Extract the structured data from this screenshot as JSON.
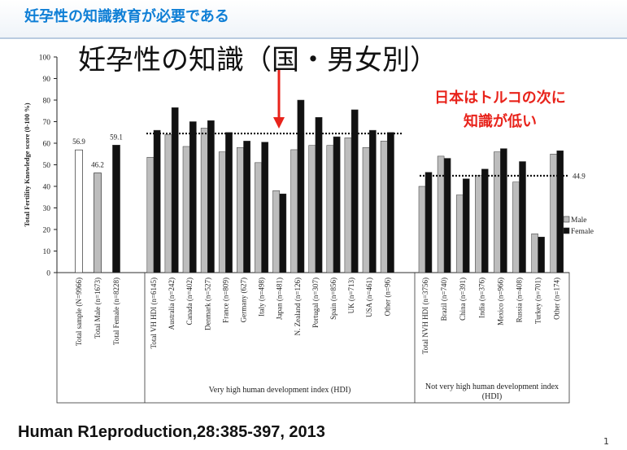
{
  "slide": {
    "top_heading": "妊孕性の知識教育が必要である",
    "title": "妊孕性の知識（国・男女別）",
    "annotation_line1": "日本はトルコの次に",
    "annotation_line2": "知識が低い",
    "citation": "Human R1eproduction,28:385-397, 2013",
    "page_number": "1"
  },
  "colors": {
    "male_bar": "#bdbdbd",
    "female_bar": "#111111",
    "total_sample_bar": "#ffffff",
    "heading_blue": "#0f7fd6",
    "annotation_red": "#e8231b",
    "arrow_red": "#e8231b"
  },
  "chart_data": {
    "type": "bar",
    "ylabel": "Total Fertility Knowledge score (0-100 %)",
    "ylim": [
      0,
      100
    ],
    "yticks": [
      0,
      10,
      20,
      30,
      40,
      50,
      60,
      70,
      80,
      90,
      100
    ],
    "grid": false,
    "legend": {
      "position": "right",
      "entries": [
        "Male",
        "Female"
      ]
    },
    "totals": {
      "categories": [
        "Total sample (N=9966)",
        "Total Male (n=1673)",
        "Total Female (n=8228)"
      ],
      "values": [
        56.9,
        46.2,
        59.1
      ],
      "labels": [
        "56.9",
        "46.2",
        "59.1"
      ]
    },
    "groups": [
      {
        "label": "Very high human development index (HDI)",
        "reference_line": 64.5,
        "categories": [
          "Total VH HDI (n=6145)",
          "Australia (n=242)",
          "Canada (n=402)",
          "Denmark (n=527)",
          "France (n=809)",
          "Germany (627)",
          "Italy (n=498)",
          "Japan (n=481)",
          "N. Zealand (n=126)",
          "Portugal (n=307)",
          "Spain (n=856)",
          "UK (n=713)",
          "USA (n=461)",
          "Other (n=96)"
        ],
        "series": [
          {
            "name": "Male",
            "values": [
              53.5,
              64,
              58.5,
              67,
              56,
              58,
              51,
              38,
              57,
              59,
              59,
              62.5,
              58,
              61
            ]
          },
          {
            "name": "Female",
            "values": [
              66,
              76.5,
              70,
              70.5,
              65,
              61,
              60.5,
              36.5,
              80,
              72,
              63,
              75.5,
              66,
              65
            ]
          }
        ]
      },
      {
        "label": "Not very high human development index (HDI)",
        "reference_line": 44.9,
        "reference_label": "44.9",
        "categories": [
          "Total NVH HDI (n=3756)",
          "Brazil (n=740)",
          "China (n=391)",
          "India (n=376)",
          "Mexico (n=966)",
          "Russia (n=408)",
          "Turkey (n=701)",
          "Other (n=174)"
        ],
        "series": [
          {
            "name": "Male",
            "values": [
              40,
              54,
              36,
              45,
              56,
              42,
              18,
              55
            ]
          },
          {
            "name": "Female",
            "values": [
              46.5,
              53,
              43.5,
              48,
              57.5,
              51.5,
              16.5,
              56.5
            ]
          }
        ]
      }
    ]
  }
}
